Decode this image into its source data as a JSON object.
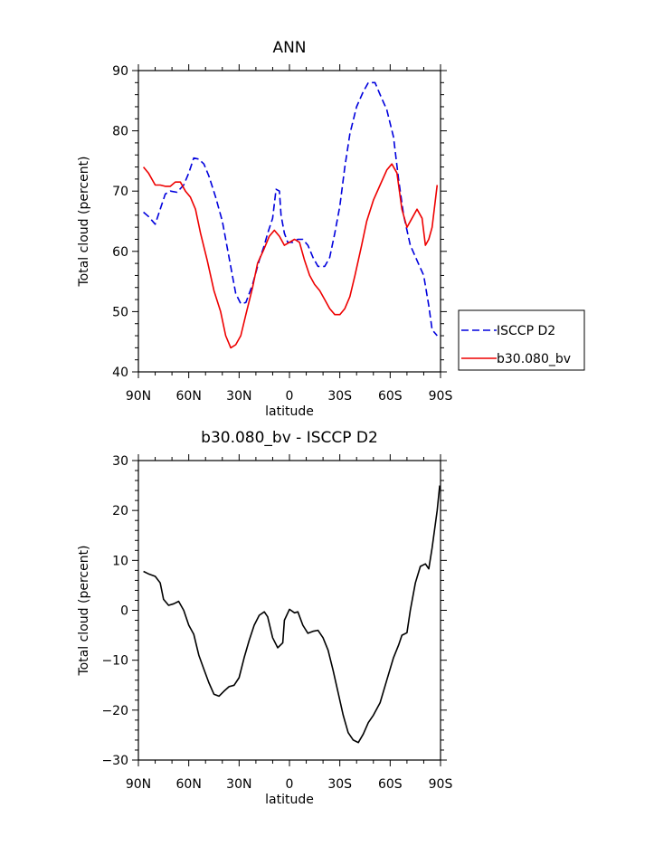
{
  "chart_data": [
    {
      "type": "line",
      "title": "ANN",
      "xlabel": "latitude",
      "ylabel": "Total cloud (percent)",
      "xlim": [
        -90,
        90
      ],
      "ylim": [
        40,
        90
      ],
      "x_ticks": [
        {
          "value": -90,
          "label": "90N"
        },
        {
          "value": -60,
          "label": "60N"
        },
        {
          "value": -30,
          "label": "30N"
        },
        {
          "value": 0,
          "label": "0"
        },
        {
          "value": 30,
          "label": "30S"
        },
        {
          "value": 60,
          "label": "60S"
        },
        {
          "value": 90,
          "label": "90S"
        }
      ],
      "y_ticks": [
        40,
        50,
        60,
        70,
        80,
        90
      ],
      "legend": "outside-right",
      "series": [
        {
          "name": "ISCCP D2",
          "color": "#0000dd",
          "dash": "dashed",
          "points": [
            [
              -87,
              66.5
            ],
            [
              -84,
              65.8
            ],
            [
              -80,
              64.5
            ],
            [
              -77,
              67
            ],
            [
              -74,
              69.5
            ],
            [
              -71,
              70
            ],
            [
              -67,
              69.8
            ],
            [
              -63,
              71
            ],
            [
              -60,
              73
            ],
            [
              -57,
              75.5
            ],
            [
              -54,
              75.3
            ],
            [
              -51,
              74.5
            ],
            [
              -48,
              72.5
            ],
            [
              -44,
              69
            ],
            [
              -40,
              65
            ],
            [
              -36,
              59
            ],
            [
              -32,
              53
            ],
            [
              -29,
              51.3
            ],
            [
              -26,
              51.5
            ],
            [
              -22,
              54.5
            ],
            [
              -18,
              58.5
            ],
            [
              -15,
              61
            ],
            [
              -13,
              63
            ],
            [
              -10,
              65.5
            ],
            [
              -8,
              70.3
            ],
            [
              -6,
              70
            ],
            [
              -5,
              66
            ],
            [
              -3,
              63
            ],
            [
              -1,
              61.5
            ],
            [
              2,
              61.5
            ],
            [
              5,
              62
            ],
            [
              8,
              62
            ],
            [
              11,
              61
            ],
            [
              14,
              59
            ],
            [
              17,
              57.5
            ],
            [
              21,
              57.5
            ],
            [
              24,
              59
            ],
            [
              27,
              63
            ],
            [
              30,
              67.5
            ],
            [
              33,
              74
            ],
            [
              36,
              79.5
            ],
            [
              40,
              84
            ],
            [
              44,
              86.5
            ],
            [
              47,
              88
            ],
            [
              51,
              88
            ],
            [
              54,
              86
            ],
            [
              58,
              83.5
            ],
            [
              62,
              79
            ],
            [
              65,
              72
            ],
            [
              68,
              66
            ],
            [
              72,
              61
            ],
            [
              76,
              58.5
            ],
            [
              80,
              56
            ],
            [
              83,
              51
            ],
            [
              85,
              47
            ],
            [
              88,
              46
            ]
          ]
        },
        {
          "name": "b30.080_bv",
          "color": "#ee0000",
          "dash": "solid",
          "points": [
            [
              -87,
              74
            ],
            [
              -84,
              73
            ],
            [
              -80,
              71
            ],
            [
              -77,
              71
            ],
            [
              -74,
              70.8
            ],
            [
              -71,
              70.8
            ],
            [
              -68,
              71.5
            ],
            [
              -65,
              71.5
            ],
            [
              -62,
              70
            ],
            [
              -59,
              69
            ],
            [
              -56,
              67
            ],
            [
              -53,
              63
            ],
            [
              -49,
              58.5
            ],
            [
              -45,
              53.5
            ],
            [
              -41,
              50
            ],
            [
              -38,
              46
            ],
            [
              -35,
              44
            ],
            [
              -32,
              44.5
            ],
            [
              -29,
              46
            ],
            [
              -26,
              49.5
            ],
            [
              -22,
              54
            ],
            [
              -19,
              58
            ],
            [
              -15,
              60.5
            ],
            [
              -12,
              62.5
            ],
            [
              -9,
              63.5
            ],
            [
              -6,
              62.5
            ],
            [
              -3,
              61
            ],
            [
              0,
              61.5
            ],
            [
              3,
              62
            ],
            [
              6,
              61.5
            ],
            [
              9,
              58.5
            ],
            [
              12,
              56
            ],
            [
              15,
              54.5
            ],
            [
              18,
              53.5
            ],
            [
              21,
              52
            ],
            [
              24,
              50.5
            ],
            [
              27,
              49.5
            ],
            [
              30,
              49.5
            ],
            [
              33,
              50.5
            ],
            [
              36,
              52.5
            ],
            [
              39,
              56
            ],
            [
              43,
              61
            ],
            [
              46,
              65
            ],
            [
              50,
              68.5
            ],
            [
              54,
              71
            ],
            [
              58,
              73.5
            ],
            [
              61,
              74.5
            ],
            [
              64,
              73
            ],
            [
              67,
              67
            ],
            [
              70,
              64
            ],
            [
              73,
              65.5
            ],
            [
              76,
              67
            ],
            [
              79,
              65.5
            ],
            [
              81,
              61
            ],
            [
              83,
              62
            ],
            [
              85,
              64
            ],
            [
              88,
              71
            ]
          ]
        }
      ]
    },
    {
      "type": "line",
      "title": "b30.080_bv - ISCCP D2",
      "xlabel": "latitude",
      "ylabel": "Total cloud (percent)",
      "xlim": [
        -90,
        90
      ],
      "ylim": [
        -30,
        30
      ],
      "x_ticks": [
        {
          "value": -90,
          "label": "90N"
        },
        {
          "value": -60,
          "label": "60N"
        },
        {
          "value": -30,
          "label": "30N"
        },
        {
          "value": 0,
          "label": "0"
        },
        {
          "value": 30,
          "label": "30S"
        },
        {
          "value": 60,
          "label": "60S"
        },
        {
          "value": 90,
          "label": "90S"
        }
      ],
      "y_ticks": [
        -30,
        -20,
        -10,
        0,
        10,
        20,
        30
      ],
      "series": [
        {
          "color": "#000000",
          "dash": "solid",
          "points": [
            [
              -87,
              7.8
            ],
            [
              -84,
              7.3
            ],
            [
              -80,
              6.8
            ],
            [
              -77,
              5.5
            ],
            [
              -75,
              2.2
            ],
            [
              -72,
              1
            ],
            [
              -69,
              1.3
            ],
            [
              -66,
              1.8
            ],
            [
              -63,
              0
            ],
            [
              -60,
              -3
            ],
            [
              -57,
              -4.8
            ],
            [
              -54,
              -9
            ],
            [
              -51,
              -11.8
            ],
            [
              -48,
              -14.5
            ],
            [
              -45,
              -16.8
            ],
            [
              -42,
              -17.2
            ],
            [
              -39,
              -16.2
            ],
            [
              -36,
              -15.3
            ],
            [
              -33,
              -15
            ],
            [
              -30,
              -13.5
            ],
            [
              -27,
              -9.5
            ],
            [
              -24,
              -6
            ],
            [
              -21,
              -3
            ],
            [
              -18,
              -1
            ],
            [
              -15,
              -0.3
            ],
            [
              -13,
              -1.3
            ],
            [
              -10,
              -5.5
            ],
            [
              -7,
              -7.5
            ],
            [
              -4,
              -6.5
            ],
            [
              -3,
              -2
            ],
            [
              0,
              0.2
            ],
            [
              3,
              -0.5
            ],
            [
              5,
              -0.3
            ],
            [
              8,
              -3
            ],
            [
              11,
              -4.6
            ],
            [
              14,
              -4.2
            ],
            [
              17,
              -4
            ],
            [
              20,
              -5.5
            ],
            [
              23,
              -8
            ],
            [
              26,
              -12
            ],
            [
              29,
              -16.5
            ],
            [
              32,
              -21
            ],
            [
              35,
              -24.5
            ],
            [
              38,
              -26
            ],
            [
              41,
              -26.5
            ],
            [
              44,
              -24.8
            ],
            [
              47,
              -22.5
            ],
            [
              50,
              -21
            ],
            [
              54,
              -18.5
            ],
            [
              58,
              -14
            ],
            [
              62,
              -9.5
            ],
            [
              65,
              -7
            ],
            [
              67,
              -5
            ],
            [
              70,
              -4.5
            ],
            [
              72,
              0
            ],
            [
              75,
              5.5
            ],
            [
              78,
              8.8
            ],
            [
              81,
              9.3
            ],
            [
              83,
              8.3
            ],
            [
              85,
              12.5
            ],
            [
              88,
              20
            ],
            [
              89.5,
              25
            ]
          ]
        }
      ]
    }
  ]
}
